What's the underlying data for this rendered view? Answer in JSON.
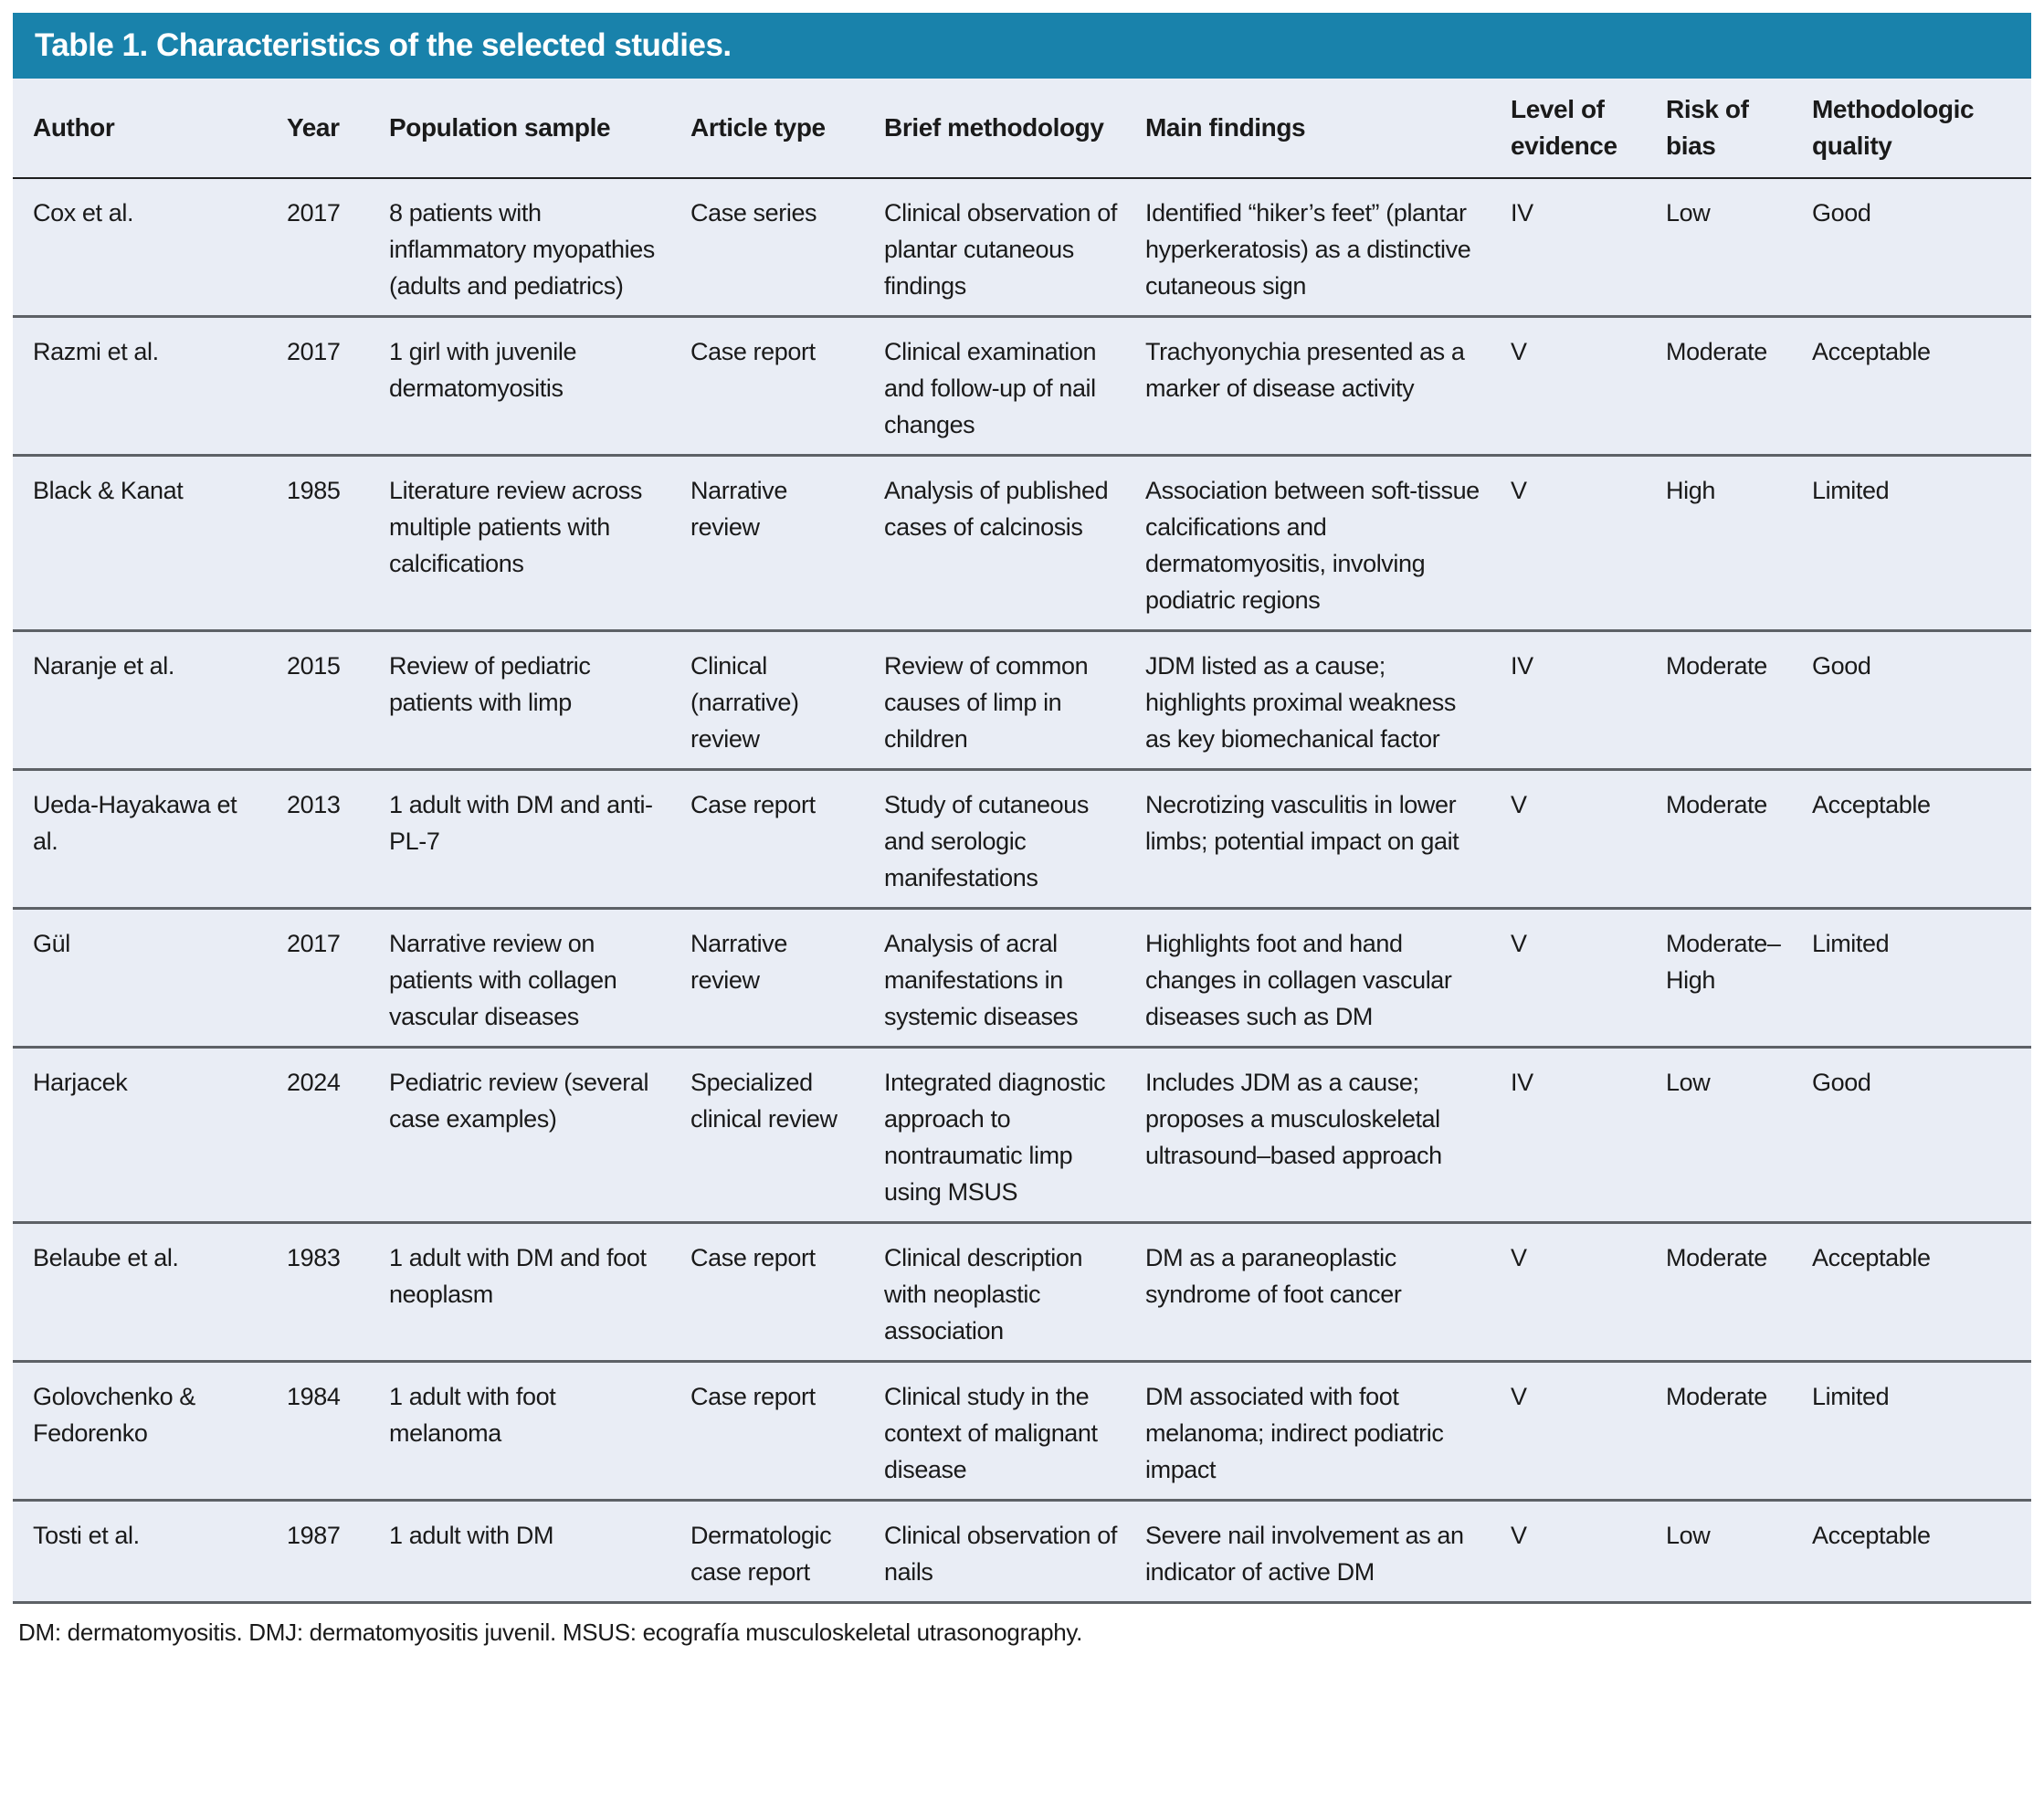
{
  "title": "Table 1. Characteristics of the selected studies.",
  "colors": {
    "header_bg": "#1982ab",
    "table_bg": "#e9edf5",
    "divider": "#5d6166",
    "text": "#1a1a1a"
  },
  "table": {
    "columns": [
      {
        "key": "author",
        "label": "Author"
      },
      {
        "key": "year",
        "label": "Year"
      },
      {
        "key": "population",
        "label": "Population sample"
      },
      {
        "key": "article_type",
        "label": "Article type"
      },
      {
        "key": "methodology",
        "label": "Brief methodology"
      },
      {
        "key": "findings",
        "label": "Main findings"
      },
      {
        "key": "evidence",
        "label": "Level of evidence"
      },
      {
        "key": "bias",
        "label": "Risk of bias"
      },
      {
        "key": "quality",
        "label": "Methodologic quality"
      }
    ],
    "rows": [
      {
        "author": "Cox et al.",
        "year": "2017",
        "population": "8 patients with inflammatory myopathies (adults and pediatrics)",
        "article_type": "Case series",
        "methodology": "Clinical observation of plantar cutaneous findings",
        "findings": "Identified “hiker’s feet” (plantar hyperkeratosis) as a distinctive cutaneous sign",
        "evidence": "IV",
        "bias": "Low",
        "quality": "Good"
      },
      {
        "author": "Razmi et al.",
        "year": "2017",
        "population": "1 girl with juvenile dermatomyositis",
        "article_type": "Case report",
        "methodology": "Clinical examination and follow-up of nail changes",
        "findings": "Trachyonychia presented as a marker of disease activity",
        "evidence": "V",
        "bias": "Moderate",
        "quality": "Acceptable"
      },
      {
        "author": "Black & Kanat",
        "year": "1985",
        "population": "Literature review across multiple patients with calcifications",
        "article_type": "Narrative review",
        "methodology": "Analysis of published cases of calcinosis",
        "findings": "Association between soft-tissue calcifications and dermatomyositis, involving podiatric regions",
        "evidence": "V",
        "bias": "High",
        "quality": "Limited"
      },
      {
        "author": "Naranje et al.",
        "year": "2015",
        "population": "Review of pediatric patients with limp",
        "article_type": "Clinical (narrative) review",
        "methodology": "Review of common causes of limp in children",
        "findings": "JDM listed as a cause; highlights proximal weakness as key biomechanical factor",
        "evidence": "IV",
        "bias": "Moderate",
        "quality": "Good"
      },
      {
        "author": "Ueda-Hayakawa et al.",
        "year": "2013",
        "population": "1 adult with DM and anti-PL-7",
        "article_type": "Case report",
        "methodology": "Study of cutaneous and serologic manifestations",
        "findings": "Necrotizing vasculitis in lower limbs; potential impact on gait",
        "evidence": "V",
        "bias": "Moderate",
        "quality": "Acceptable"
      },
      {
        "author": "Gül",
        "year": "2017",
        "population": "Narrative review on patients with collagen vascular diseases",
        "article_type": "Narrative review",
        "methodology": "Analysis of acral manifestations in systemic diseases",
        "findings": "Highlights foot and hand changes in collagen vascular diseases such as DM",
        "evidence": "V",
        "bias": "Moderate–High",
        "quality": "Limited"
      },
      {
        "author": "Harjacek",
        "year": "2024",
        "population": "Pediatric review (several case examples)",
        "article_type": "Specialized clinical review",
        "methodology": "Integrated diagnostic approach to nontraumatic limp using MSUS",
        "findings": "Includes JDM as a cause; proposes a musculoskeletal ultrasound–based approach",
        "evidence": "IV",
        "bias": "Low",
        "quality": "Good"
      },
      {
        "author": "Belaube et al.",
        "year": "1983",
        "population": "1 adult with DM and foot neoplasm",
        "article_type": "Case report",
        "methodology": "Clinical description with neoplastic association",
        "findings": "DM as a paraneoplastic syndrome of foot cancer",
        "evidence": "V",
        "bias": "Moderate",
        "quality": "Acceptable"
      },
      {
        "author": "Golovchenko & Fedorenko",
        "year": "1984",
        "population": "1 adult with foot melanoma",
        "article_type": "Case report",
        "methodology": "Clinical study in the context of malignant disease",
        "findings": "DM associated with foot melanoma; indirect podiatric impact",
        "evidence": "V",
        "bias": "Moderate",
        "quality": "Limited"
      },
      {
        "author": "Tosti et al.",
        "year": "1987",
        "population": "1 adult with DM",
        "article_type": "Dermatologic case report",
        "methodology": "Clinical observation of nails",
        "findings": "Severe nail involvement as an indicator of active DM",
        "evidence": "V",
        "bias": "Low",
        "quality": "Acceptable"
      }
    ]
  },
  "footnote": "DM: dermatomyositis. DMJ: dermatomyositis juvenil. MSUS: ecografía musculoskeletal utrasonography."
}
